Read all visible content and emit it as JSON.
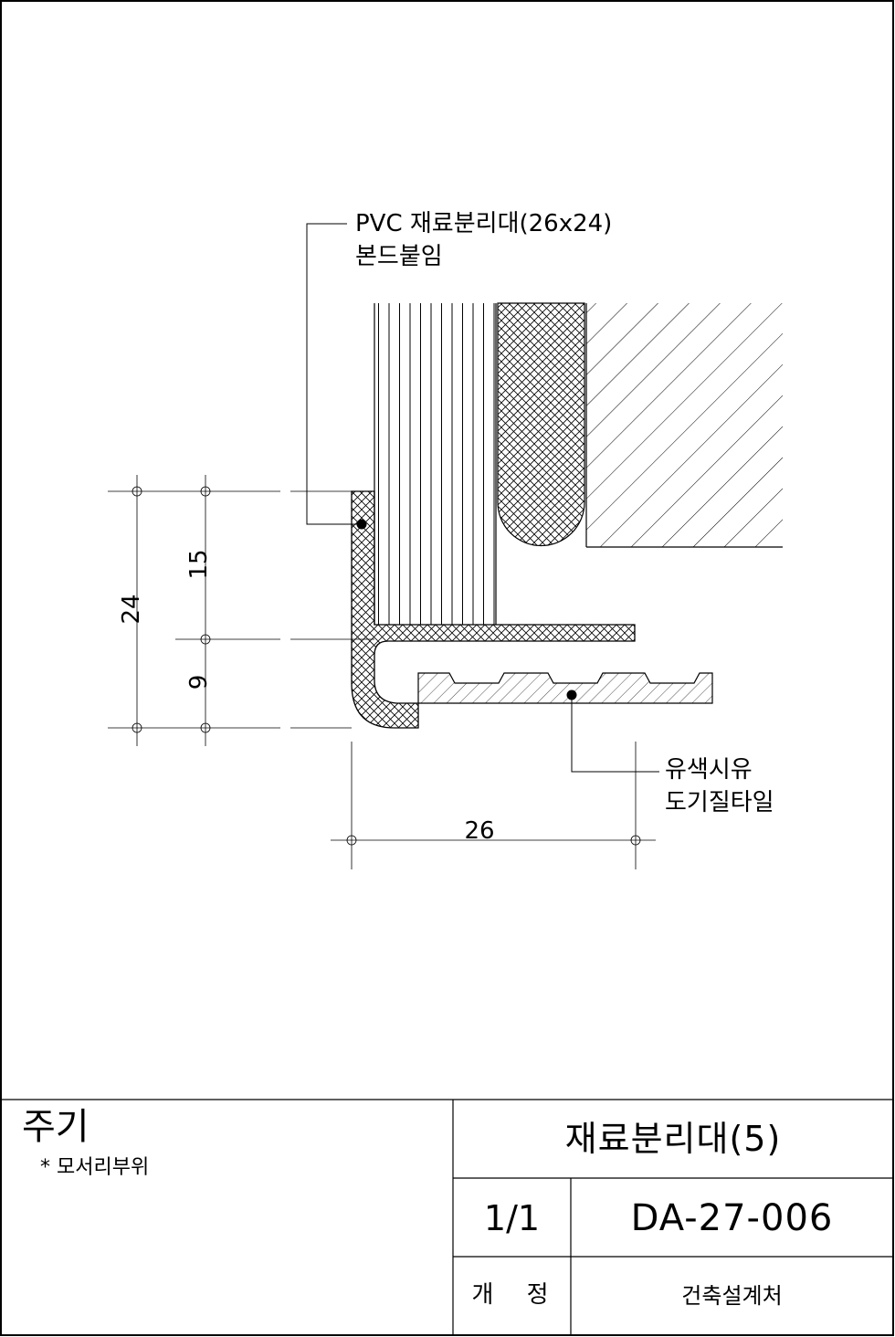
{
  "drawing": {
    "labels": {
      "pvc_line1": "PVC 재료분리대(26x24)",
      "pvc_line2": "본드붙임",
      "tile_line1": "유색시유",
      "tile_line2": "도기질타일"
    },
    "dimensions": {
      "overall_height": "24",
      "upper_height": "15",
      "lower_height": "9",
      "width": "26"
    }
  },
  "title_block": {
    "notes_title": "주기",
    "notes_item": "* 모서리부위",
    "drawing_title": "재료분리대(5)",
    "sheet": "1/1",
    "drawing_code": "DA-27-006",
    "revision_label": "개 정",
    "company": "건축설계처"
  }
}
